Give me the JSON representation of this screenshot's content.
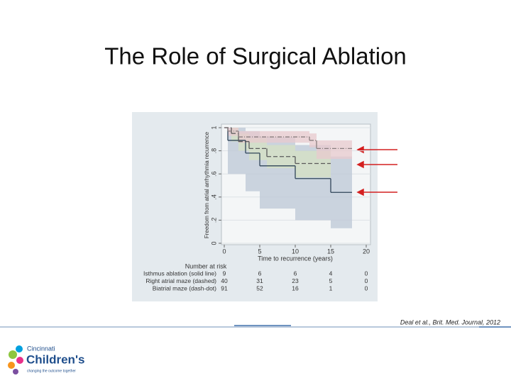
{
  "slide": {
    "title": "The Role of Surgical Ablation",
    "citation": "Deal et al., Brit. Med. Journal, 2012",
    "logo": {
      "line1": "Cincinnati",
      "line2": "Children's",
      "tagline": "changing the outcome together"
    }
  },
  "chart_data": {
    "type": "step",
    "x_label": "Time to recurrence (years)",
    "y_label": "Freedom from atrial arrhythmia recurrence",
    "xlim": [
      0,
      20
    ],
    "xticks": [
      0,
      5,
      10,
      15,
      20
    ],
    "ylim": [
      0,
      1
    ],
    "yticks": [
      0,
      {
        "value": 0.2,
        "label": ".2"
      },
      {
        "value": 0.4,
        "label": ".4"
      },
      {
        "value": 0.6,
        "label": ".6"
      },
      {
        "value": 0.8,
        "label": ".8"
      },
      1
    ],
    "grid": true,
    "series": [
      {
        "name": "Isthmus ablation (solid line)",
        "color": "#2f4558",
        "band_color": "#bcc7d6",
        "dash": "solid",
        "x": [
          0,
          0.5,
          3,
          5,
          10,
          15,
          18
        ],
        "values": [
          1,
          0.89,
          0.78,
          0.67,
          0.56,
          0.44,
          0.44
        ],
        "lower": [
          1,
          0.6,
          0.45,
          0.3,
          0.2,
          0.13,
          0.13
        ],
        "upper": [
          1,
          1,
          0.97,
          0.92,
          0.85,
          0.75,
          0.75
        ],
        "at_risk": [
          9,
          6,
          6,
          4,
          0
        ]
      },
      {
        "name": "Right atrial maze (dashed)",
        "color": "#5a5a5a",
        "band_color": "#d5e2c3",
        "dash": "dashed",
        "x": [
          0,
          1,
          2,
          3.5,
          6,
          10,
          15
        ],
        "values": [
          1,
          0.95,
          0.88,
          0.82,
          0.75,
          0.69,
          0.69
        ],
        "lower": [
          1,
          0.88,
          0.8,
          0.72,
          0.65,
          0.57,
          0.57
        ],
        "upper": [
          1,
          1,
          0.95,
          0.91,
          0.85,
          0.8,
          0.8
        ],
        "at_risk": [
          40,
          31,
          23,
          5,
          0
        ]
      },
      {
        "name": "Biatrial maze (dash-dot)",
        "color": "#8a7f80",
        "band_color": "#e8c9cd",
        "dash": "dash-dot",
        "x": [
          0,
          0.5,
          2,
          12,
          13,
          18
        ],
        "values": [
          1,
          0.97,
          0.92,
          0.89,
          0.82,
          0.82
        ],
        "lower": [
          1,
          0.93,
          0.87,
          0.83,
          0.73,
          0.73
        ],
        "upper": [
          1,
          1,
          0.97,
          0.95,
          0.89,
          0.89
        ],
        "at_risk": [
          91,
          52,
          16,
          1,
          0
        ]
      }
    ],
    "risk_table_title": "Number at risk"
  }
}
